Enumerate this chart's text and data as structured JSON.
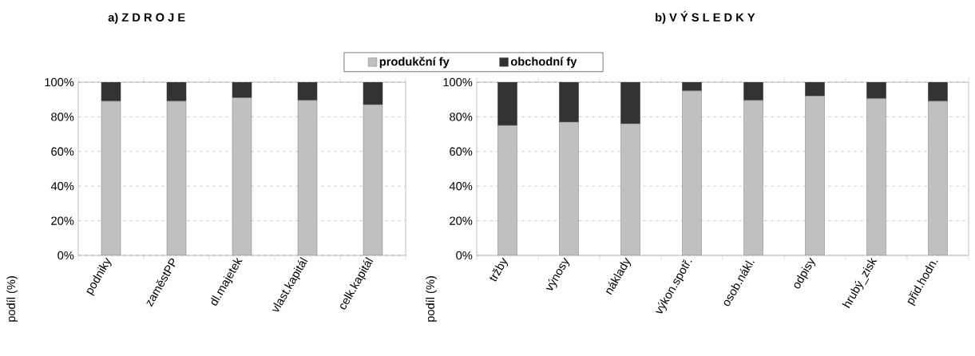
{
  "chart_data": [
    {
      "type": "bar",
      "title": "a)    Z D R O J E",
      "ylabel": "podíl  (%)",
      "categories": [
        "podniky",
        "zaměstPP",
        "dl.majetek",
        "vlast.kapitál",
        "celk.kapitál"
      ],
      "stacked": true,
      "series": [
        {
          "color": "#c0c0c0",
          "values": [
            89,
            89,
            91,
            89.5,
            87
          ]
        },
        {
          "color": "#333333",
          "values": [
            11,
            11,
            9,
            10.5,
            13
          ]
        }
      ],
      "ylim": [
        0,
        100
      ],
      "yticks": [
        {
          "value": 0,
          "label": "0%"
        },
        {
          "value": 20,
          "label": "20%"
        },
        {
          "value": 40,
          "label": "40%"
        },
        {
          "value": 60,
          "label": "60%"
        },
        {
          "value": 80,
          "label": "80%"
        },
        {
          "value": 100,
          "label": "100%"
        }
      ],
      "grid": "y"
    },
    {
      "type": "bar",
      "title": "b)      V Ý S L E D K Y",
      "ylabel": "podíl  (%)",
      "categories": [
        "tržby",
        "výnosy",
        "náklady",
        "výkon.spotř.",
        "osob.nákl.",
        "odpisy",
        "hrubý_zisk",
        "přid.hodn."
      ],
      "stacked": true,
      "series": [
        {
          "name": "produkční fy",
          "color": "#c0c0c0",
          "values": [
            75,
            77,
            76,
            95,
            89.5,
            92,
            90.5,
            89
          ]
        },
        {
          "name": "obchodní fy",
          "color": "#333333",
          "values": [
            25,
            23,
            24,
            5,
            10.5,
            8,
            9.5,
            11
          ]
        }
      ],
      "ylim": [
        0,
        100
      ],
      "yticks": [
        {
          "value": 0,
          "label": "0%"
        },
        {
          "value": 20,
          "label": "20%"
        },
        {
          "value": 40,
          "label": "40%"
        },
        {
          "value": 60,
          "label": "60%"
        },
        {
          "value": 80,
          "label": "80%"
        },
        {
          "value": 100,
          "label": "100%"
        }
      ],
      "grid": "y",
      "legend": "top"
    }
  ]
}
